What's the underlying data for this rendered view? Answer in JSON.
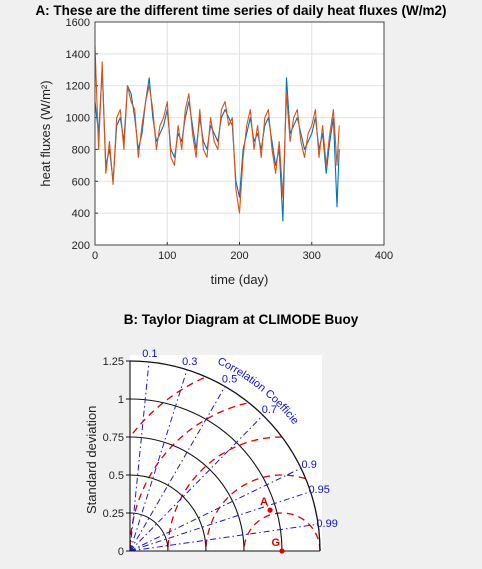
{
  "chart_data": [
    {
      "type": "line",
      "title": "A: These are the different time series of daily heat fluxes (W/m2)",
      "xlabel": "time (day)",
      "ylabel": "heat fluxes (W/m²)",
      "xlim": [
        0,
        400
      ],
      "ylim": [
        200,
        1600
      ],
      "xticks": [
        "0",
        "100",
        "200",
        "300",
        "400"
      ],
      "yticks": [
        "200",
        "400",
        "600",
        "800",
        "1000",
        "1200",
        "1400",
        "1600"
      ],
      "grid": true,
      "series": [
        {
          "color": "#0072bd",
          "x": [
            0,
            5,
            10,
            15,
            20,
            25,
            30,
            35,
            40,
            45,
            50,
            55,
            60,
            65,
            70,
            75,
            80,
            85,
            90,
            95,
            100,
            105,
            110,
            115,
            120,
            125,
            130,
            135,
            140,
            145,
            150,
            155,
            160,
            165,
            170,
            175,
            180,
            185,
            190,
            195,
            200,
            205,
            210,
            215,
            220,
            225,
            230,
            235,
            240,
            245,
            250,
            255,
            260,
            265,
            270,
            275,
            280,
            285,
            290,
            295,
            300,
            305,
            310,
            315,
            320,
            325,
            330,
            335,
            338
          ],
          "y": [
            1100,
            900,
            1300,
            700,
            800,
            600,
            950,
            1000,
            850,
            1200,
            1150,
            1000,
            800,
            900,
            1100,
            1250,
            1000,
            850,
            900,
            950,
            1050,
            800,
            750,
            900,
            850,
            1000,
            1100,
            950,
            800,
            1000,
            850,
            800,
            950,
            900,
            850,
            1000,
            1050,
            1000,
            950,
            600,
            500,
            800,
            900,
            1000,
            850,
            900,
            800,
            950,
            1000,
            850,
            700,
            800,
            350,
            1250,
            900,
            950,
            1000,
            900,
            800,
            850,
            900,
            1000,
            800,
            900,
            650,
            850,
            1000,
            440,
            800
          ]
        },
        {
          "color": "#d95319",
          "x": [
            0,
            5,
            10,
            15,
            20,
            25,
            30,
            35,
            40,
            45,
            50,
            55,
            60,
            65,
            70,
            75,
            80,
            85,
            90,
            95,
            100,
            105,
            110,
            115,
            120,
            125,
            130,
            135,
            140,
            145,
            150,
            155,
            160,
            165,
            170,
            175,
            180,
            185,
            190,
            195,
            200,
            205,
            210,
            215,
            220,
            225,
            230,
            235,
            240,
            245,
            250,
            255,
            260,
            265,
            270,
            275,
            280,
            285,
            290,
            295,
            300,
            305,
            310,
            315,
            320,
            325,
            330,
            335,
            338
          ],
          "y": [
            1450,
            800,
            1350,
            650,
            850,
            580,
            1000,
            1050,
            800,
            1200,
            1100,
            1050,
            750,
            950,
            1100,
            1200,
            1050,
            800,
            950,
            1000,
            1100,
            750,
            700,
            950,
            800,
            1050,
            1150,
            900,
            750,
            1050,
            800,
            750,
            1000,
            850,
            800,
            1050,
            1100,
            950,
            1000,
            550,
            400,
            750,
            950,
            1050,
            800,
            950,
            750,
            1000,
            1050,
            800,
            650,
            850,
            500,
            1150,
            850,
            1000,
            1050,
            850,
            750,
            900,
            950,
            1050,
            750,
            950,
            700,
            900,
            1050,
            700,
            950
          ]
        }
      ]
    },
    {
      "type": "taylor-diagram",
      "title": "B: Taylor Diagram at CLIMODE Buoy",
      "ylabel": "Standard deviation",
      "yticks": [
        "0",
        "0.25",
        "0.5",
        "0.75",
        "1",
        "1.25"
      ],
      "ylim": [
        0,
        1.25
      ],
      "correlation_label": "Correlation Coefficient",
      "correlation_ticks": [
        "0.1",
        "0.3",
        "0.5",
        "0.7",
        "0.9",
        "0.95",
        "0.99"
      ],
      "rms_contours": [
        0.25,
        0.5,
        0.75,
        1.0,
        1.25
      ],
      "points": [
        {
          "label": "A",
          "std": 0.96,
          "corr": 0.96,
          "color": "#e00000"
        },
        {
          "label": "G",
          "std": 1.0,
          "corr": 1.0,
          "color": "#e00000"
        }
      ]
    }
  ]
}
